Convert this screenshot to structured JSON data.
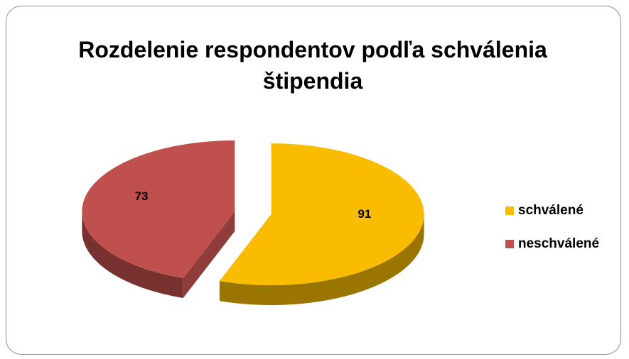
{
  "chart_data": {
    "type": "pie",
    "title": "Rozdelenie respondentov podľa schválenia štipendia",
    "categories": [
      "schválené",
      "neschválené"
    ],
    "values": [
      91,
      73
    ],
    "colors": [
      "#f9bc00",
      "#c0504d"
    ],
    "legend": "right"
  }
}
